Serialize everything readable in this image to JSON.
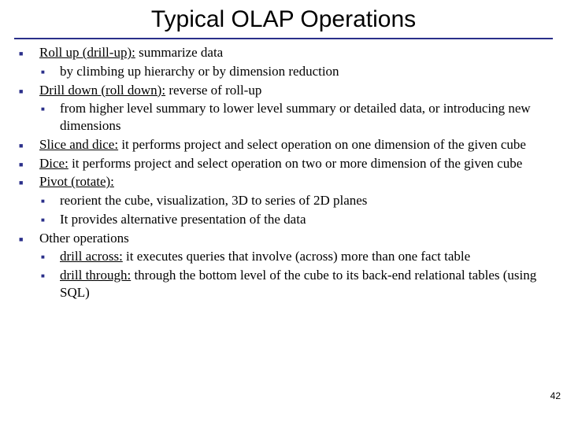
{
  "title": "Typical OLAP Operations",
  "page_number": "42",
  "colors": {
    "bullet": "#2a2f8a",
    "rule": "#2a2f8a",
    "text": "#000000",
    "background": "#ffffff"
  },
  "typography": {
    "title_font": "Arial",
    "title_size_pt": 30,
    "body_font": "Book Antiqua",
    "body_size_pt": 17
  },
  "items": [
    {
      "prefix_u": "Roll up (drill-up):",
      "rest": " summarize data",
      "children": [
        {
          "text": "by climbing up hierarchy or by dimension reduction"
        }
      ]
    },
    {
      "prefix_u": "Drill down (roll down):",
      "rest": " reverse of roll-up",
      "children": [
        {
          "text": "from higher level summary to lower level summary or detailed data, or introducing new dimensions"
        }
      ]
    },
    {
      "prefix_u": "Slice and dice:",
      "rest": " it performs project and select  operation on one dimension of the given cube",
      "children": []
    },
    {
      "prefix_u": "Dice:",
      "rest": " it performs project and select  operation on two or more  dimension of the given cube",
      "children": []
    },
    {
      "prefix_u": "Pivot (rotate):",
      "rest": "",
      "children": [
        {
          "text": "reorient the cube, visualization, 3D to series of 2D planes"
        },
        {
          "text": "It provides alternative presentation of the data"
        }
      ]
    },
    {
      "prefix_u": "",
      "rest": "Other operations",
      "children": [
        {
          "prefix_u": "drill across:",
          "rest": " it executes queries that involve (across) more than one fact table"
        },
        {
          "prefix_u": "drill through:",
          "rest": " through the bottom level of the cube to its back-end relational tables (using SQL)"
        }
      ]
    }
  ]
}
